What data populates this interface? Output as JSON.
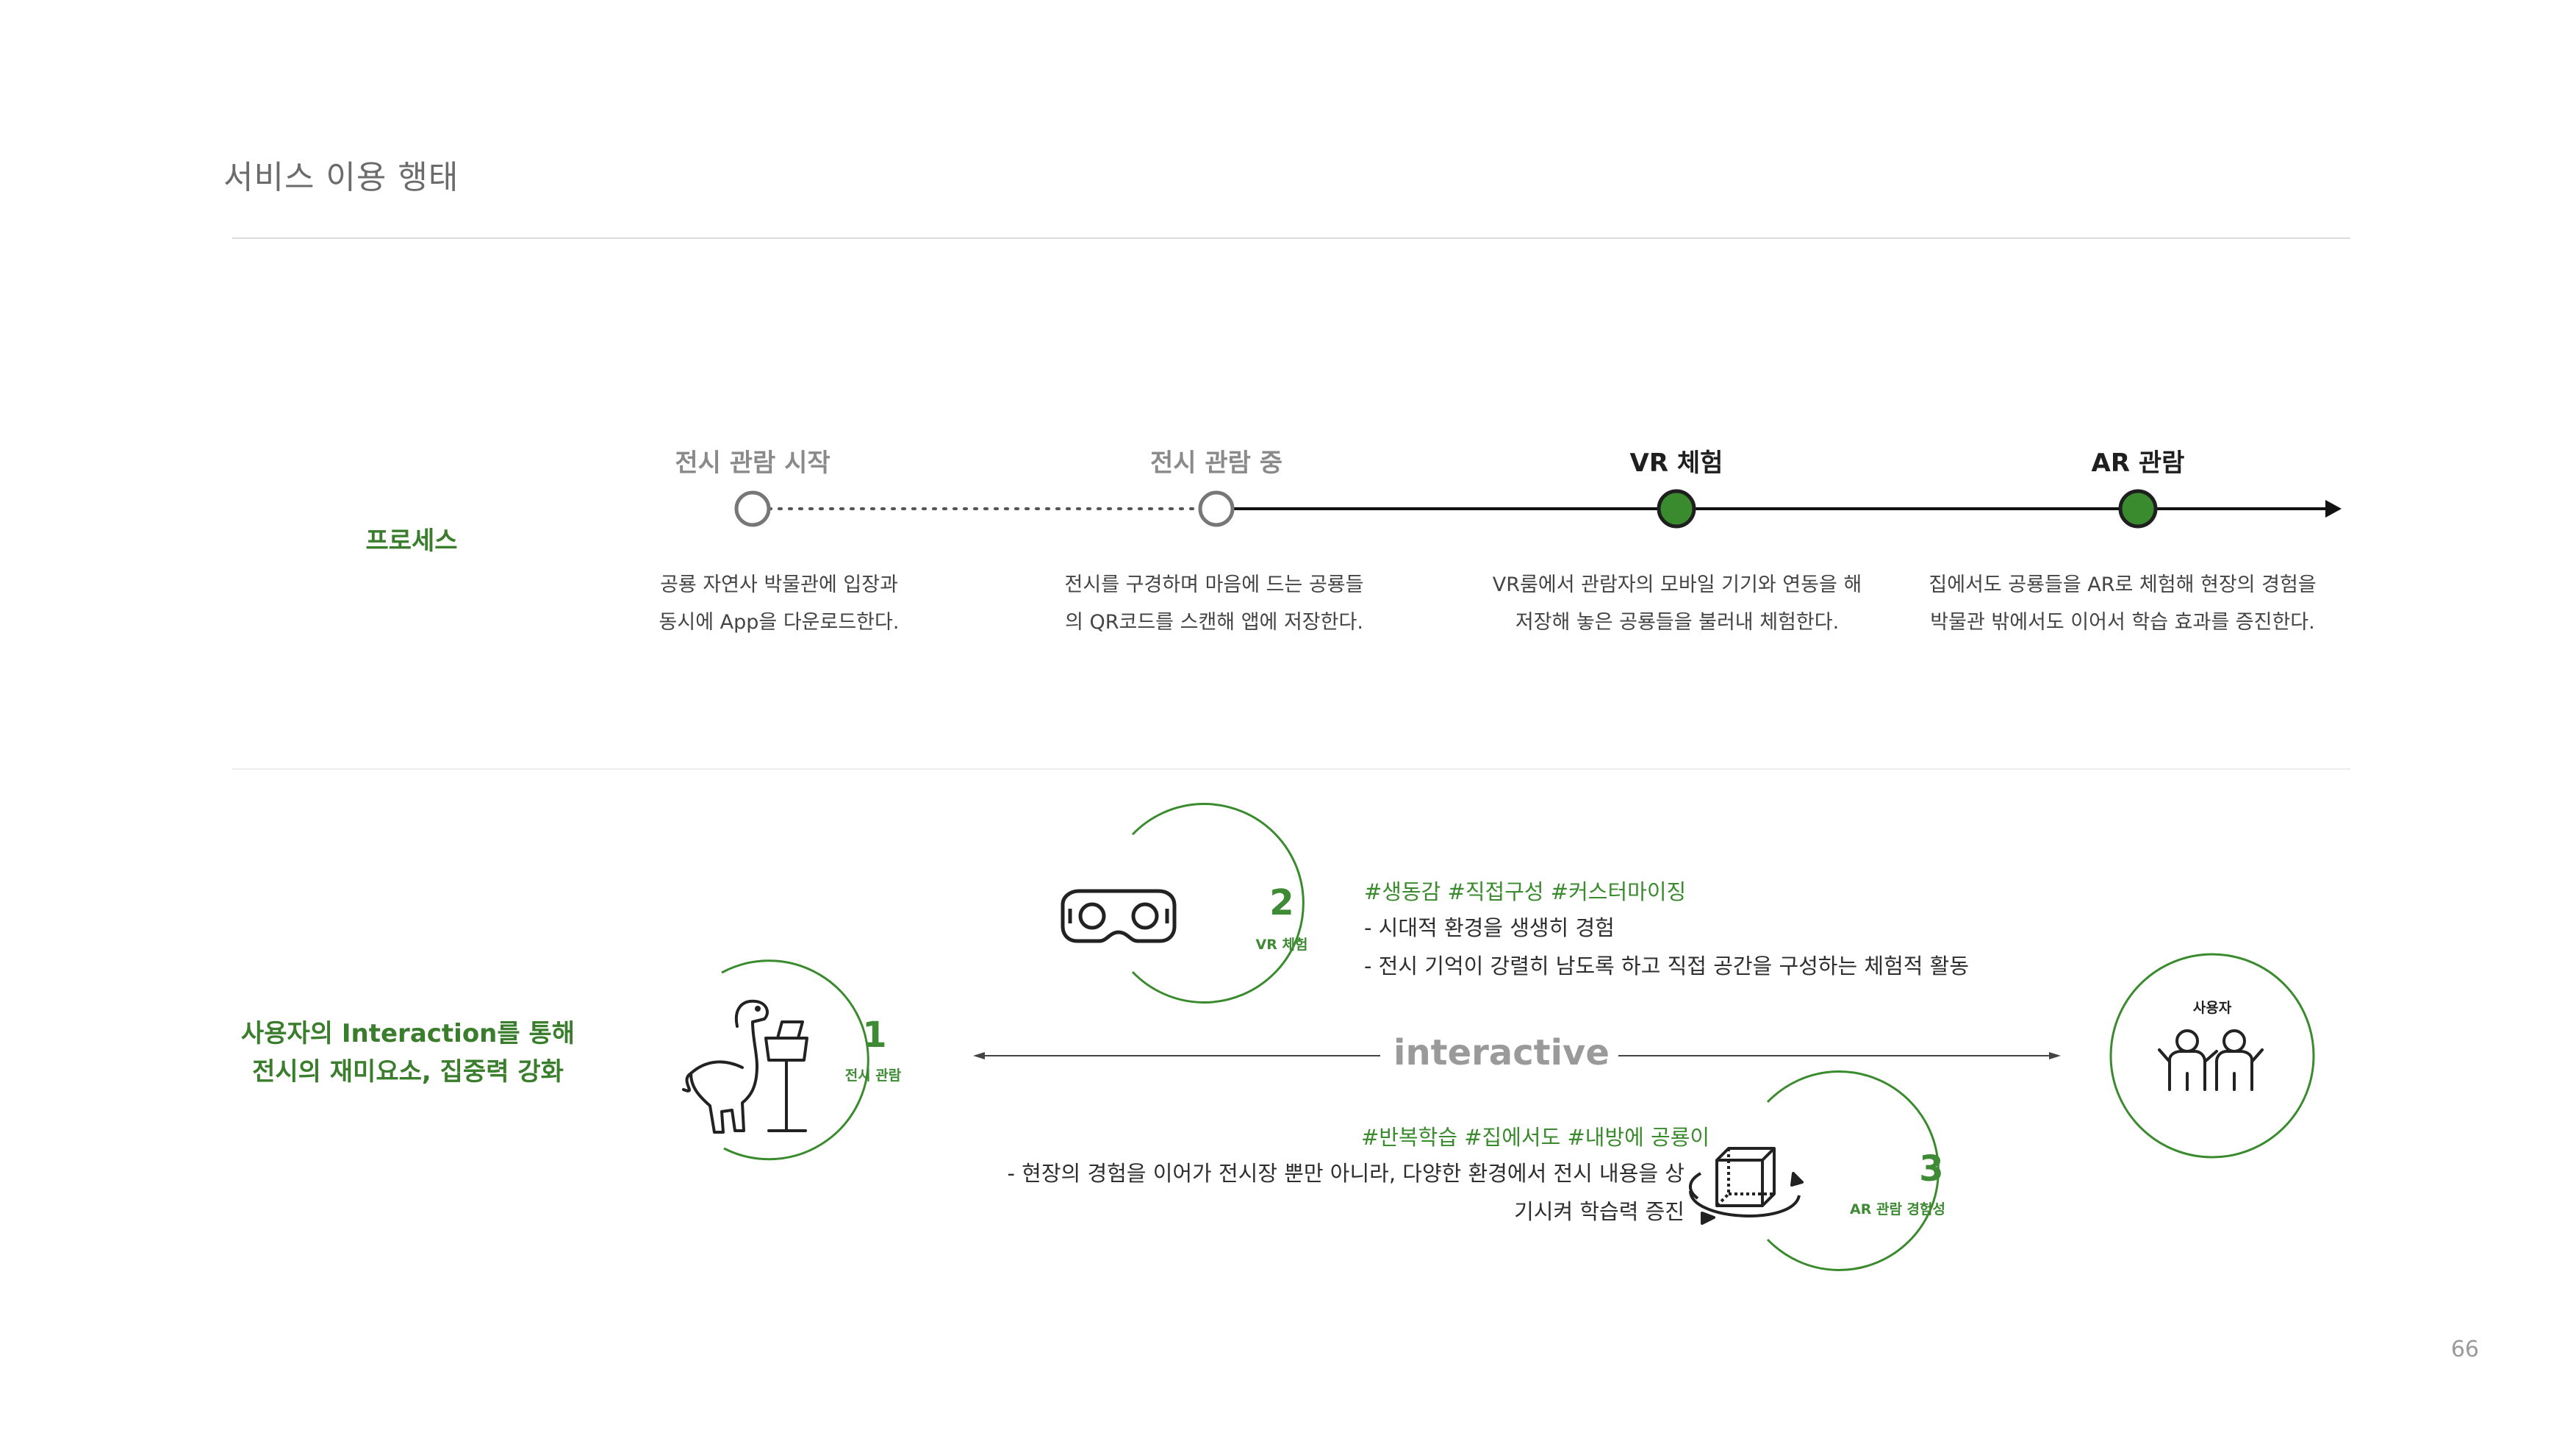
{
  "page": {
    "title": "서비스 이용 행태",
    "number": "66"
  },
  "process": {
    "label": "프로세스",
    "stages": [
      {
        "title": "전시 관람 시작",
        "desc_line1": "공룡 자연사 박물관에 입장과",
        "desc_line2": "동시에 App을 다운로드한다."
      },
      {
        "title": "전시 관람 중",
        "desc_line1": "전시를 구경하며 마음에 드는 공룡들",
        "desc_line2": "의 QR코드를 스캔해 앱에 저장한다."
      },
      {
        "title": "VR 체험",
        "desc_line1": "VR룸에서 관람자의 모바일 기기와 연동을 해",
        "desc_line2": "저장해 놓은 공룡들을 불러내 체험한다."
      },
      {
        "title": "AR 관람",
        "desc_line1": "집에서도 공룡들을 AR로 체험해 현장의 경험을",
        "desc_line2": "박물관 밖에서도 이어서 학습 효과를 증진한다."
      }
    ]
  },
  "interaction": {
    "label_line1": "사용자의 Interaction를 통해",
    "label_line2": "전시의 재미요소, 집중력 강화",
    "center_word": "interactive",
    "steps": [
      {
        "number": "1",
        "label": "전시 관람"
      },
      {
        "number": "2",
        "label": "VR 체험"
      },
      {
        "number": "3",
        "label": "AR 관람 경험성"
      }
    ],
    "user_label": "사용자",
    "vr_tags": "#생동감 #직접구성 #커스터마이징",
    "vr_points": [
      "- 시대적 환경을 생생히 경험",
      "- 전시 기억이 강렬히 남도록 하고 직접 공간을 구성하는 체험적 활동"
    ],
    "ar_tags": "#반복학습 #집에서도 #내방에 공룡이",
    "ar_points": [
      "- 현장의 경험을 이어가 전시장 뿐만 아니라, 다양한 환경에서 전시 내용을 상",
      "기시켜 학습력 증진"
    ]
  },
  "colors": {
    "accent_green": "#3f8a35",
    "node_fill": "#3a8a2e",
    "muted_text": "#8a8a8a"
  },
  "icons": [
    "dinosaur-kiosk-icon",
    "vr-headset-icon",
    "ar-cube-icon",
    "users-icon"
  ]
}
